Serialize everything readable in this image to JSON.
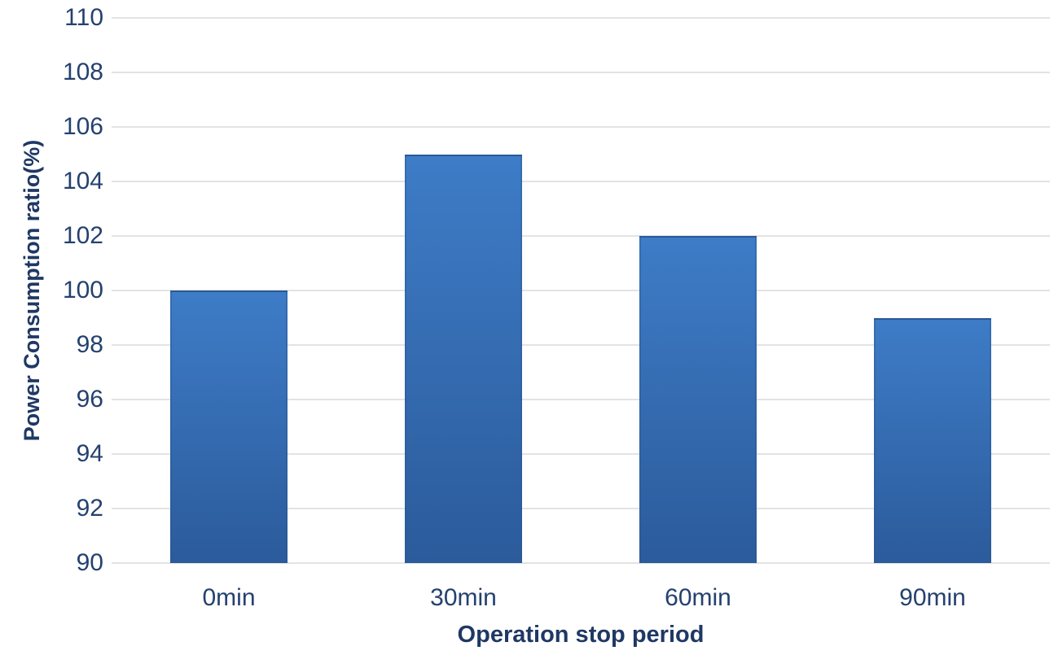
{
  "chart_data": {
    "type": "bar",
    "title": "",
    "categories": [
      "0min",
      "30min",
      "60min",
      "90min"
    ],
    "values": [
      100,
      105,
      102,
      99
    ],
    "xlabel": "Operation stop period",
    "ylabel": "Power Consumption ratio(%)",
    "ylim": [
      90,
      110
    ],
    "ytick_step": 2,
    "ytick_labels": [
      "90",
      "92",
      "94",
      "96",
      "98",
      "100",
      "102",
      "104",
      "106",
      "108",
      "110"
    ],
    "grid": true,
    "legend_position": "none",
    "colors": {
      "bar_gradient_top": "#3E7CC7",
      "bar_gradient_bottom": "#2B5B9B",
      "bar_border": "#2A5892",
      "tick_label": "#24416F",
      "axis_title": "#1F3864",
      "gridline": "#E3E3E3",
      "background": "#FFFFFF"
    }
  }
}
